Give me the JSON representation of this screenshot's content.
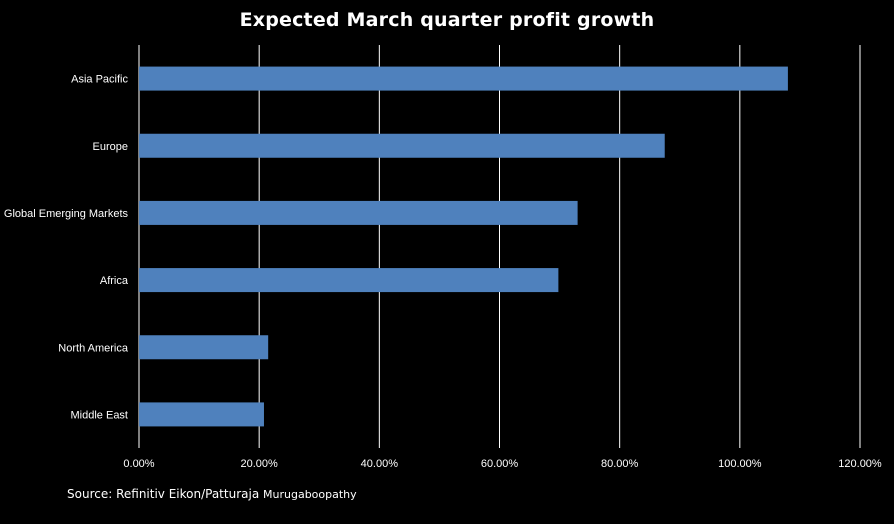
{
  "chart_data": {
    "type": "bar",
    "orientation": "horizontal",
    "title": "Expected March quarter profit growth",
    "categories": [
      "Asia Pacific",
      "Europe",
      "Global Emerging Markets",
      "Africa",
      "North America",
      "Middle East"
    ],
    "values": [
      108.0,
      87.5,
      73.0,
      69.8,
      21.5,
      20.8
    ],
    "xlabel": "",
    "ylabel": "",
    "xlim": [
      0,
      120
    ],
    "xticks": [
      0,
      20,
      40,
      60,
      80,
      100,
      120
    ],
    "xtick_labels": [
      "0.00%",
      "20.00%",
      "40.00%",
      "60.00%",
      "80.00%",
      "100.00%",
      "120.00%"
    ],
    "grid": true,
    "legend": "none",
    "colors": {
      "bar": "#4f81bd",
      "grid": "#ffffff",
      "background": "#000000",
      "text": "#ffffff"
    }
  },
  "source": {
    "prefix": "Source: Refinitiv Eikon/Patturaja",
    "name": "Murugaboopathy"
  }
}
